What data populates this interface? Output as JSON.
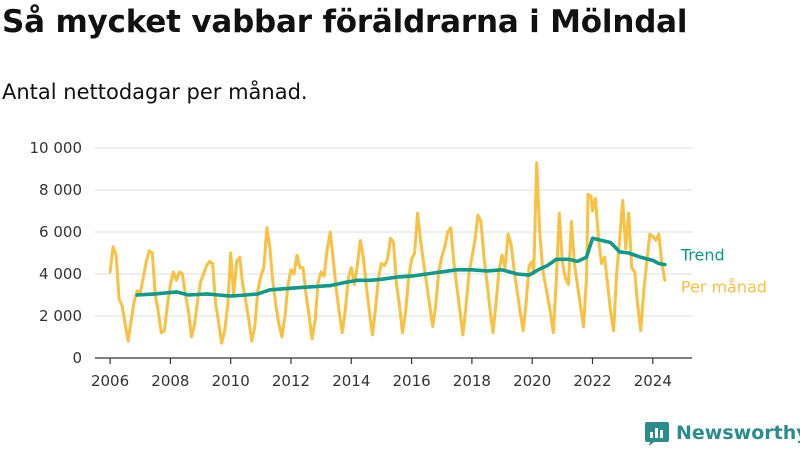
{
  "chart_data": {
    "type": "line",
    "title": "Så mycket vabbar föräldrarna i Mölndal",
    "subtitle": "Antal nettodagar per månad.",
    "xlabel": "",
    "ylabel": "",
    "xlim": [
      2005.5,
      2025.3
    ],
    "ylim": [
      0,
      10000
    ],
    "y_ticks": [
      0,
      2000,
      4000,
      6000,
      8000,
      10000
    ],
    "y_tick_labels": [
      "0",
      "2 000",
      "4 000",
      "6 000",
      "8 000",
      "10 000"
    ],
    "x_ticks": [
      2006,
      2008,
      2010,
      2012,
      2014,
      2016,
      2018,
      2020,
      2022,
      2024
    ],
    "x_tick_labels": [
      "2006",
      "2008",
      "2010",
      "2012",
      "2014",
      "2016",
      "2018",
      "2020",
      "2022",
      "2024"
    ],
    "grid": true,
    "legend": "inline-right",
    "series": [
      {
        "name": "Per månad",
        "color": "#f9c042",
        "points": [
          [
            2006.0,
            4100
          ],
          [
            2006.1,
            5300
          ],
          [
            2006.2,
            4900
          ],
          [
            2006.3,
            2800
          ],
          [
            2006.4,
            2500
          ],
          [
            2006.5,
            1600
          ],
          [
            2006.6,
            800
          ],
          [
            2006.7,
            1800
          ],
          [
            2006.8,
            2700
          ],
          [
            2006.9,
            3200
          ],
          [
            2007.0,
            3100
          ],
          [
            2007.1,
            3800
          ],
          [
            2007.2,
            4600
          ],
          [
            2007.3,
            5100
          ],
          [
            2007.4,
            5000
          ],
          [
            2007.5,
            3000
          ],
          [
            2007.6,
            2200
          ],
          [
            2007.7,
            1200
          ],
          [
            2007.8,
            1300
          ],
          [
            2007.9,
            2500
          ],
          [
            2008.0,
            3500
          ],
          [
            2008.1,
            4100
          ],
          [
            2008.2,
            3700
          ],
          [
            2008.3,
            4100
          ],
          [
            2008.4,
            4000
          ],
          [
            2008.5,
            3000
          ],
          [
            2008.6,
            2200
          ],
          [
            2008.7,
            1000
          ],
          [
            2008.8,
            1600
          ],
          [
            2008.9,
            2700
          ],
          [
            2009.0,
            3600
          ],
          [
            2009.1,
            4000
          ],
          [
            2009.2,
            4400
          ],
          [
            2009.3,
            4600
          ],
          [
            2009.4,
            4500
          ],
          [
            2009.5,
            2600
          ],
          [
            2009.6,
            1700
          ],
          [
            2009.7,
            700
          ],
          [
            2009.8,
            1300
          ],
          [
            2009.9,
            2500
          ],
          [
            2010.0,
            5000
          ],
          [
            2010.1,
            3000
          ],
          [
            2010.2,
            4600
          ],
          [
            2010.3,
            4800
          ],
          [
            2010.4,
            3500
          ],
          [
            2010.5,
            2700
          ],
          [
            2010.6,
            1800
          ],
          [
            2010.7,
            800
          ],
          [
            2010.8,
            1500
          ],
          [
            2010.9,
            3200
          ],
          [
            2011.0,
            3900
          ],
          [
            2011.1,
            4300
          ],
          [
            2011.2,
            6200
          ],
          [
            2011.3,
            5200
          ],
          [
            2011.4,
            3600
          ],
          [
            2011.5,
            2500
          ],
          [
            2011.6,
            1600
          ],
          [
            2011.7,
            1000
          ],
          [
            2011.8,
            2000
          ],
          [
            2011.9,
            3500
          ],
          [
            2012.0,
            4200
          ],
          [
            2012.1,
            4000
          ],
          [
            2012.2,
            4900
          ],
          [
            2012.3,
            4300
          ],
          [
            2012.4,
            4300
          ],
          [
            2012.5,
            3000
          ],
          [
            2012.6,
            2000
          ],
          [
            2012.7,
            900
          ],
          [
            2012.8,
            1800
          ],
          [
            2012.9,
            3600
          ],
          [
            2013.0,
            4100
          ],
          [
            2013.1,
            3900
          ],
          [
            2013.2,
            5200
          ],
          [
            2013.3,
            6000
          ],
          [
            2013.4,
            4700
          ],
          [
            2013.5,
            3300
          ],
          [
            2013.6,
            2200
          ],
          [
            2013.7,
            1200
          ],
          [
            2013.8,
            2300
          ],
          [
            2013.9,
            3800
          ],
          [
            2014.0,
            4300
          ],
          [
            2014.1,
            3500
          ],
          [
            2014.2,
            4400
          ],
          [
            2014.3,
            5600
          ],
          [
            2014.4,
            4800
          ],
          [
            2014.5,
            3400
          ],
          [
            2014.6,
            2200
          ],
          [
            2014.7,
            1100
          ],
          [
            2014.8,
            2300
          ],
          [
            2014.9,
            3800
          ],
          [
            2015.0,
            4500
          ],
          [
            2015.1,
            4400
          ],
          [
            2015.2,
            4700
          ],
          [
            2015.3,
            5700
          ],
          [
            2015.4,
            5500
          ],
          [
            2015.5,
            3500
          ],
          [
            2015.6,
            2500
          ],
          [
            2015.7,
            1200
          ],
          [
            2015.8,
            2200
          ],
          [
            2015.9,
            3800
          ],
          [
            2016.0,
            4700
          ],
          [
            2016.1,
            5000
          ],
          [
            2016.2,
            6900
          ],
          [
            2016.3,
            5600
          ],
          [
            2016.4,
            4500
          ],
          [
            2016.5,
            3500
          ],
          [
            2016.6,
            2500
          ],
          [
            2016.7,
            1500
          ],
          [
            2016.8,
            2500
          ],
          [
            2016.9,
            4100
          ],
          [
            2017.0,
            4800
          ],
          [
            2017.1,
            5300
          ],
          [
            2017.2,
            6000
          ],
          [
            2017.3,
            6200
          ],
          [
            2017.4,
            4600
          ],
          [
            2017.5,
            3400
          ],
          [
            2017.6,
            2300
          ],
          [
            2017.7,
            1100
          ],
          [
            2017.8,
            2400
          ],
          [
            2017.9,
            4000
          ],
          [
            2018.0,
            4800
          ],
          [
            2018.1,
            5600
          ],
          [
            2018.2,
            6800
          ],
          [
            2018.3,
            6500
          ],
          [
            2018.4,
            4800
          ],
          [
            2018.5,
            3600
          ],
          [
            2018.6,
            2300
          ],
          [
            2018.7,
            1200
          ],
          [
            2018.8,
            2600
          ],
          [
            2018.9,
            4200
          ],
          [
            2019.0,
            4900
          ],
          [
            2019.1,
            4300
          ],
          [
            2019.2,
            5900
          ],
          [
            2019.3,
            5400
          ],
          [
            2019.4,
            4200
          ],
          [
            2019.5,
            3200
          ],
          [
            2019.6,
            2200
          ],
          [
            2019.7,
            1300
          ],
          [
            2019.8,
            2700
          ],
          [
            2019.9,
            4400
          ],
          [
            2020.0,
            4600
          ],
          [
            2020.05,
            4000
          ],
          [
            2020.15,
            9300
          ],
          [
            2020.25,
            6000
          ],
          [
            2020.35,
            4200
          ],
          [
            2020.5,
            3000
          ],
          [
            2020.6,
            2200
          ],
          [
            2020.7,
            1200
          ],
          [
            2020.8,
            3700
          ],
          [
            2020.9,
            6900
          ],
          [
            2021.0,
            4600
          ],
          [
            2021.1,
            3800
          ],
          [
            2021.2,
            3500
          ],
          [
            2021.3,
            6500
          ],
          [
            2021.4,
            4500
          ],
          [
            2021.5,
            3500
          ],
          [
            2021.6,
            2500
          ],
          [
            2021.7,
            1500
          ],
          [
            2021.8,
            3800
          ],
          [
            2021.85,
            7800
          ],
          [
            2021.95,
            7700
          ],
          [
            2022.0,
            7000
          ],
          [
            2022.1,
            7600
          ],
          [
            2022.2,
            5700
          ],
          [
            2022.3,
            4500
          ],
          [
            2022.4,
            4800
          ],
          [
            2022.5,
            3500
          ],
          [
            2022.6,
            2200
          ],
          [
            2022.7,
            1300
          ],
          [
            2022.8,
            4000
          ],
          [
            2022.9,
            5600
          ],
          [
            2023.0,
            7500
          ],
          [
            2023.1,
            5200
          ],
          [
            2023.2,
            6900
          ],
          [
            2023.3,
            4300
          ],
          [
            2023.4,
            4100
          ],
          [
            2023.5,
            2500
          ],
          [
            2023.6,
            1300
          ],
          [
            2023.7,
            3200
          ],
          [
            2023.8,
            4600
          ],
          [
            2023.9,
            5900
          ],
          [
            2024.0,
            5800
          ],
          [
            2024.1,
            5600
          ],
          [
            2024.2,
            5900
          ],
          [
            2024.3,
            4500
          ],
          [
            2024.4,
            3700
          ]
        ]
      },
      {
        "name": "Trend",
        "color": "#0d9a8a",
        "points": [
          [
            2006.9,
            3000
          ],
          [
            2007.5,
            3050
          ],
          [
            2008.2,
            3150
          ],
          [
            2008.6,
            3000
          ],
          [
            2009.2,
            3050
          ],
          [
            2009.6,
            3000
          ],
          [
            2010.0,
            2950
          ],
          [
            2010.5,
            3000
          ],
          [
            2010.9,
            3050
          ],
          [
            2011.3,
            3250
          ],
          [
            2011.8,
            3300
          ],
          [
            2012.3,
            3350
          ],
          [
            2012.8,
            3400
          ],
          [
            2013.3,
            3450
          ],
          [
            2013.8,
            3600
          ],
          [
            2014.2,
            3700
          ],
          [
            2014.6,
            3700
          ],
          [
            2015.0,
            3750
          ],
          [
            2015.5,
            3850
          ],
          [
            2016.0,
            3900
          ],
          [
            2016.5,
            4000
          ],
          [
            2017.0,
            4100
          ],
          [
            2017.5,
            4200
          ],
          [
            2018.0,
            4200
          ],
          [
            2018.5,
            4150
          ],
          [
            2019.0,
            4200
          ],
          [
            2019.5,
            4000
          ],
          [
            2019.9,
            3950
          ],
          [
            2020.2,
            4200
          ],
          [
            2020.5,
            4400
          ],
          [
            2020.8,
            4700
          ],
          [
            2021.2,
            4700
          ],
          [
            2021.5,
            4600
          ],
          [
            2021.8,
            4800
          ],
          [
            2022.0,
            5700
          ],
          [
            2022.3,
            5600
          ],
          [
            2022.6,
            5500
          ],
          [
            2022.9,
            5050
          ],
          [
            2023.2,
            5000
          ],
          [
            2023.6,
            4800
          ],
          [
            2024.0,
            4650
          ],
          [
            2024.2,
            4500
          ],
          [
            2024.4,
            4450
          ]
        ]
      }
    ]
  },
  "brand": {
    "name": "Newsworthy",
    "color": "#2b8c8c"
  }
}
